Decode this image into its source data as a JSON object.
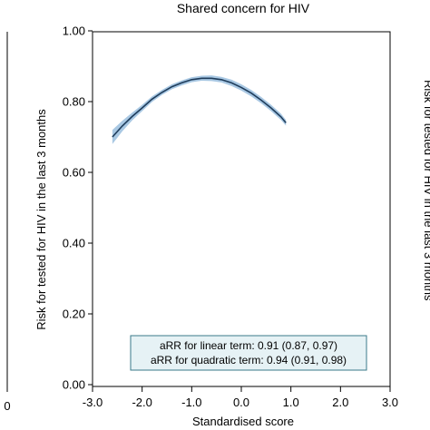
{
  "chart_data": {
    "type": "line",
    "title": "Shared concern for HIV",
    "xlabel": "Standardised score",
    "ylabel": "Risk for tested for HIV in the last 3 months",
    "xlim": [
      -3.0,
      3.0
    ],
    "ylim": [
      0.0,
      1.0
    ],
    "xticks": [
      "-3.0",
      "-2.0",
      "-1.0",
      "0.0",
      "1.0",
      "2.0",
      "3.0"
    ],
    "yticks": [
      "0.00",
      "0.20",
      "0.40",
      "0.60",
      "0.80",
      "1.00"
    ],
    "grid": false,
    "series": [
      {
        "color": "#1f3d5c",
        "band_color": "#a9c8e3",
        "x": [
          -2.6,
          -2.4,
          -2.2,
          -2.0,
          -1.8,
          -1.6,
          -1.4,
          -1.2,
          -1.0,
          -0.8,
          -0.6,
          -0.4,
          -0.2,
          0.0,
          0.2,
          0.4,
          0.6,
          0.8,
          0.9
        ],
        "y": [
          0.7,
          0.731,
          0.758,
          0.782,
          0.807,
          0.826,
          0.842,
          0.853,
          0.862,
          0.866,
          0.866,
          0.862,
          0.853,
          0.84,
          0.824,
          0.804,
          0.782,
          0.757,
          0.74
        ],
        "lower": [
          0.68,
          0.716,
          0.747,
          0.773,
          0.799,
          0.819,
          0.835,
          0.846,
          0.855,
          0.859,
          0.858,
          0.854,
          0.844,
          0.831,
          0.815,
          0.795,
          0.773,
          0.748,
          0.732
        ],
        "upper": [
          0.72,
          0.746,
          0.769,
          0.791,
          0.815,
          0.833,
          0.849,
          0.86,
          0.869,
          0.873,
          0.874,
          0.87,
          0.862,
          0.849,
          0.833,
          0.813,
          0.791,
          0.766,
          0.748
        ]
      }
    ],
    "annotation": {
      "lines": [
        "aRR for linear term: 0.91 (0.87, 0.97)",
        "aRR for quadratic term: 0.94 (0.91, 0.98)"
      ],
      "box_fill": "#e6f2f5",
      "box_stroke": "#3a7a8a"
    },
    "neighbor_panels": {
      "left_tick_label": "0",
      "right_ylabel": "Risk for tested for HIV in the last 3 months"
    }
  }
}
